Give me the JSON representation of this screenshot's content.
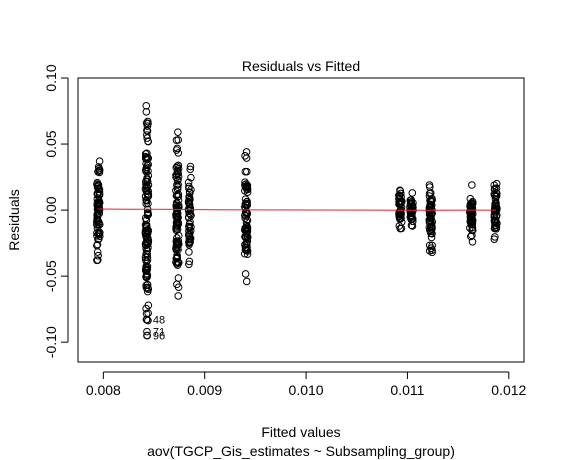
{
  "chart_data": {
    "type": "scatter",
    "title": "Residuals vs Fitted",
    "xlabel": "Fitted values",
    "subtitle": "aov(TGCP_Gis_estimates ~ Subsampling_group)",
    "ylabel": "Residuals",
    "xlim": [
      0.00775,
      0.01215
    ],
    "ylim": [
      -0.115,
      0.1
    ],
    "x_ticks": [
      0.008,
      0.009,
      0.01,
      0.011,
      0.012
    ],
    "x_tick_labels": [
      "0.008",
      "0.009",
      "0.010",
      "0.011",
      "0.012"
    ],
    "y_ticks": [
      -0.1,
      -0.05,
      0.0,
      0.05,
      0.1
    ],
    "y_tick_labels": [
      "-0.10",
      "-0.05",
      "0.00",
      "0.05",
      "0.10"
    ],
    "groups": [
      {
        "x": 0.00795,
        "min": -0.038,
        "max": 0.037,
        "n": 70
      },
      {
        "x": 0.00843,
        "min": -0.095,
        "max": 0.079,
        "n": 130
      },
      {
        "x": 0.00873,
        "min": -0.065,
        "max": 0.059,
        "n": 95
      },
      {
        "x": 0.00885,
        "min": -0.041,
        "max": 0.033,
        "n": 55
      },
      {
        "x": 0.00941,
        "min": -0.054,
        "max": 0.044,
        "n": 75
      },
      {
        "x": 0.01093,
        "min": -0.014,
        "max": 0.015,
        "n": 40
      },
      {
        "x": 0.01104,
        "min": -0.012,
        "max": 0.013,
        "n": 35
      },
      {
        "x": 0.01123,
        "min": -0.032,
        "max": 0.019,
        "n": 55
      },
      {
        "x": 0.01163,
        "min": -0.024,
        "max": 0.019,
        "n": 50
      },
      {
        "x": 0.01187,
        "min": -0.022,
        "max": 0.02,
        "n": 50
      }
    ],
    "labeled_points": [
      {
        "label": "48",
        "x": 0.00843,
        "y": -0.083
      },
      {
        "label": "71",
        "x": 0.00843,
        "y": -0.092
      },
      {
        "label": "96",
        "x": 0.00843,
        "y": -0.095
      }
    ],
    "smoother": {
      "color": "#e8212b",
      "x": [
        0.00795,
        0.00843,
        0.00873,
        0.00885,
        0.00941,
        0.01093,
        0.01104,
        0.01123,
        0.01163,
        0.01187
      ],
      "y": [
        0.0008,
        0.0006,
        0.0005,
        0.0004,
        0.0002,
        -0.0001,
        -0.0001,
        -0.0001,
        0.0,
        0.0
      ]
    },
    "point_color": "#000000"
  }
}
